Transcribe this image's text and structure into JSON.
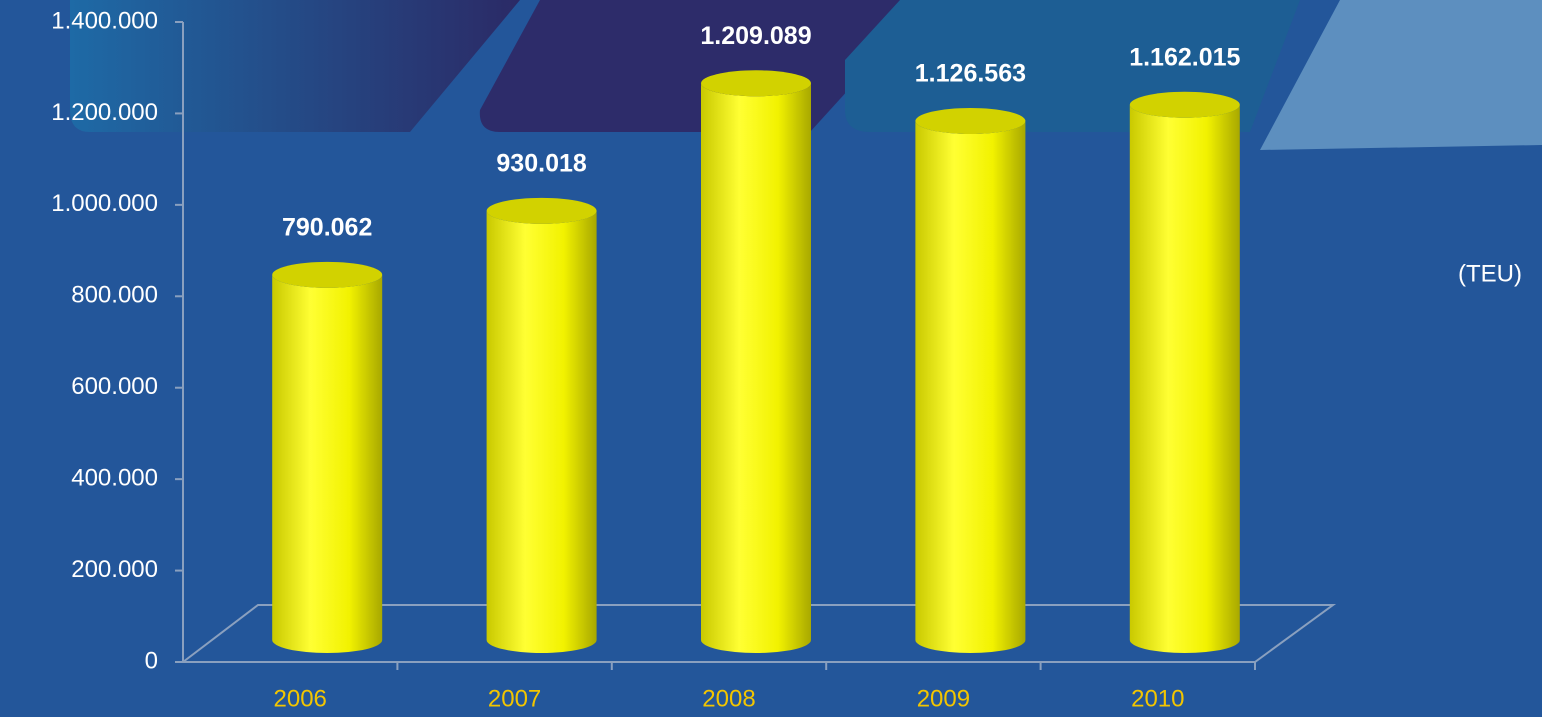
{
  "chart_data": {
    "type": "bar",
    "categories": [
      "2006",
      "2007",
      "2008",
      "2009",
      "2010"
    ],
    "values": [
      790062,
      930018,
      1209089,
      1126563,
      1162015
    ],
    "value_labels": [
      "790.062",
      "930.018",
      "1.209.089",
      "1.126.563",
      "1.162.015"
    ],
    "color": "#ffff00",
    "unit_label": "(TEU)",
    "ylim": [
      0,
      1400000
    ],
    "yticks": [
      0,
      {
        "value": 200000,
        "label": "200.000"
      },
      {
        "value": 400000,
        "label": "400.000"
      },
      {
        "value": 600000,
        "label": "600.000"
      },
      {
        "value": 800000,
        "label": "800.000"
      },
      {
        "value": 1000000,
        "label": "1.000.000"
      },
      {
        "value": 1200000,
        "label": "1.200.000"
      },
      {
        "value": 1400000,
        "label": "1.400.000"
      }
    ],
    "grid": false
  }
}
